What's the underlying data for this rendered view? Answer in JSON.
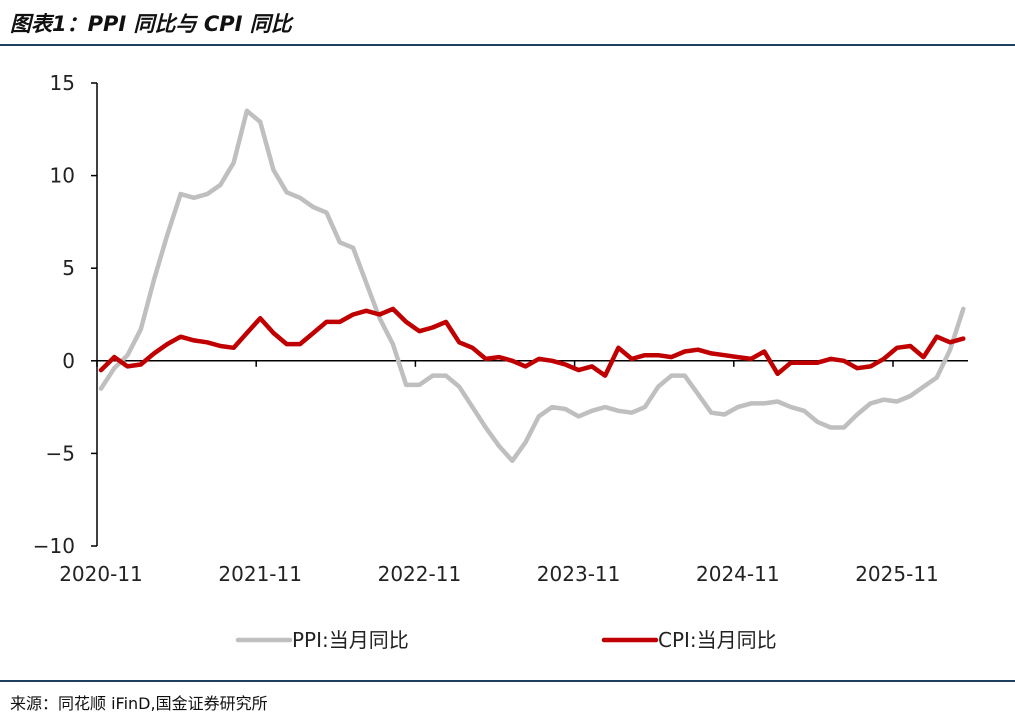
{
  "header": {
    "title": "图表1：PPI 同比与 CPI 同比"
  },
  "footer": {
    "source": "来源：同花顺 iFinD,国金证券研究所"
  },
  "chart_data": {
    "type": "line",
    "x_start": "2020-11",
    "x_ticks": [
      "2020-11",
      "2021-11",
      "2022-11",
      "2023-11",
      "2024-11",
      "2025-11"
    ],
    "ylim": [
      -10,
      15
    ],
    "y_ticks": [
      15,
      10,
      5,
      0,
      -5,
      -10
    ],
    "grid": false,
    "legend": "bottom",
    "series": [
      {
        "name": "PPI:当月同比",
        "color": "#bfbfbf",
        "values": [
          -1.5,
          -0.4,
          0.3,
          1.7,
          4.4,
          6.8,
          9.0,
          8.8,
          9.0,
          9.5,
          10.7,
          13.5,
          12.9,
          10.3,
          9.1,
          8.8,
          8.3,
          8.0,
          6.4,
          6.1,
          4.2,
          2.3,
          0.9,
          -1.3,
          -1.3,
          -0.8,
          -0.8,
          -1.4,
          -2.5,
          -3.6,
          -4.6,
          -5.4,
          -4.4,
          -3.0,
          -2.5,
          -2.6,
          -3.0,
          -2.7,
          -2.5,
          -2.7,
          -2.8,
          -2.5,
          -1.4,
          -0.8,
          -0.8,
          -1.8,
          -2.8,
          -2.9,
          -2.5,
          -2.3,
          -2.3,
          -2.2,
          -2.5,
          -2.7,
          -3.3,
          -3.6,
          -3.6,
          -2.9,
          -2.3,
          -2.1,
          -2.2,
          -1.9,
          -1.4,
          -0.9,
          0.6,
          2.8
        ]
      },
      {
        "name": "CPI:当月同比",
        "color": "#c00000",
        "values": [
          -0.5,
          0.2,
          -0.3,
          -0.2,
          0.4,
          0.9,
          1.3,
          1.1,
          1.0,
          0.8,
          0.7,
          1.5,
          2.3,
          1.5,
          0.9,
          0.9,
          1.5,
          2.1,
          2.1,
          2.5,
          2.7,
          2.5,
          2.8,
          2.1,
          1.6,
          1.8,
          2.1,
          1.0,
          0.7,
          0.1,
          0.2,
          0.0,
          -0.3,
          0.1,
          0.0,
          -0.2,
          -0.5,
          -0.3,
          -0.8,
          0.7,
          0.1,
          0.3,
          0.3,
          0.2,
          0.5,
          0.6,
          0.4,
          0.3,
          0.2,
          0.1,
          0.5,
          -0.7,
          -0.1,
          -0.1,
          -0.1,
          0.1,
          0.0,
          -0.4,
          -0.3,
          0.1,
          0.7,
          0.8,
          0.2,
          1.3,
          1.0,
          1.2
        ]
      }
    ]
  }
}
